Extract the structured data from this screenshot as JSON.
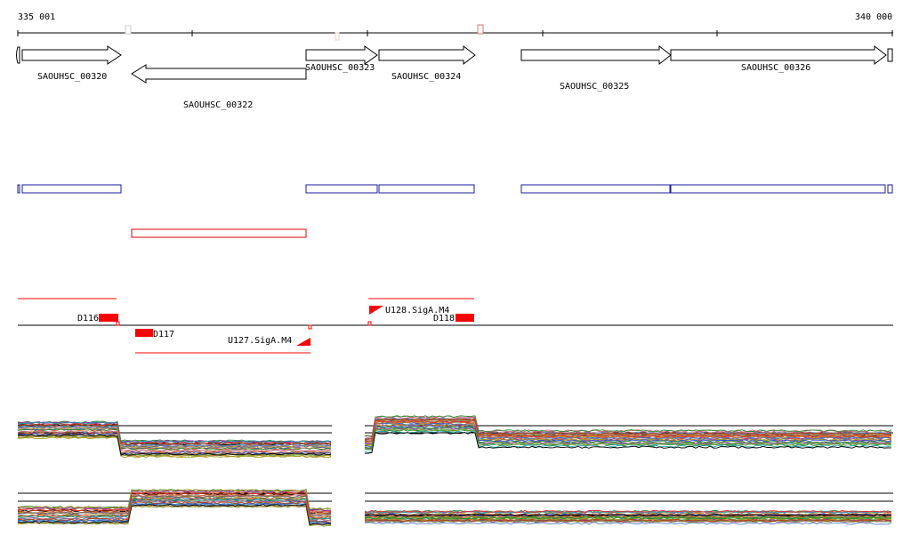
{
  "ruler": {
    "start_label": "335 001",
    "end_label": "340 000"
  },
  "genes": [
    {
      "id": "g320",
      "label": "SAOUHSC_00320",
      "strand": "+"
    },
    {
      "id": "g322",
      "label": "SAOUHSC_00322",
      "strand": "-"
    },
    {
      "id": "g323",
      "label": "SAOUHSC_00323",
      "strand": "+"
    },
    {
      "id": "g324",
      "label": "SAOUHSC_00324",
      "strand": "+"
    },
    {
      "id": "g325",
      "label": "SAOUHSC_00325",
      "strand": "+"
    },
    {
      "id": "g326",
      "label": "SAOUHSC_00326",
      "strand": "+"
    }
  ],
  "transcripts": [
    {
      "label": "D116"
    },
    {
      "label": "D117"
    },
    {
      "label": "U127.SigA.M4"
    },
    {
      "label": "U128.SigA.M4"
    },
    {
      "label": "D118"
    }
  ],
  "colors": {
    "axis": "#000000",
    "gene_outline": "#000000",
    "forward_box": "#1a1aa0",
    "reverse_box": "#e00000",
    "transcript": "#ff0000"
  }
}
